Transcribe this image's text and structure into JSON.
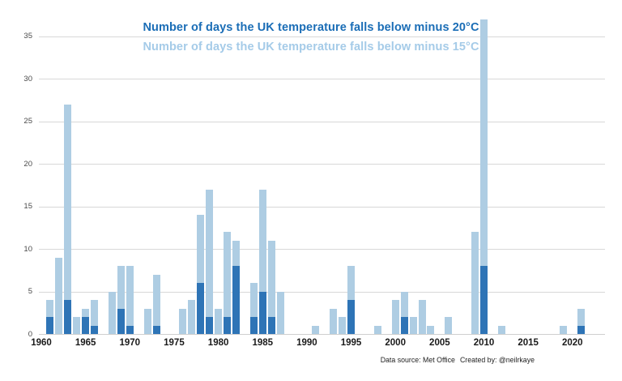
{
  "title": {
    "line1": "Number of days the UK temperature falls below minus 20°C",
    "line2": "Number of days the UK temperature falls below minus 15°C"
  },
  "footer": {
    "data_source": "Data source: Met Office",
    "created_by": "Created by: @neilrkaye"
  },
  "colors": {
    "bar_dark_blue": "#2e74b6",
    "bar_light_blue": "#aecde3",
    "title_dark_blue": "#1a6db6",
    "title_light_blue": "#a5cbe8",
    "gridline_gray": "#d8d8d8",
    "x_label_color": "#1a1a1a",
    "y_label_color": "#4a4a4a"
  },
  "chart_data": {
    "type": "bar",
    "title": "Number of days the UK temperature falls below minus 20°C",
    "subtitle": "Number of days the UK temperature falls below minus 15°C",
    "grid": "horizontal",
    "legend_position": "titles-act-as-legend",
    "ylim": [
      0,
      37.5
    ],
    "y_ticks": [
      0,
      5,
      10,
      15,
      20,
      25,
      30,
      35
    ],
    "x_tick_labels": [
      "1960",
      "1965",
      "1970",
      "1975",
      "1980",
      "1985",
      "1990",
      "1995",
      "2000",
      "2005",
      "2010",
      "2015",
      "2020"
    ],
    "years": [
      1960,
      1961,
      1962,
      1963,
      1964,
      1965,
      1966,
      1967,
      1968,
      1969,
      1970,
      1971,
      1972,
      1973,
      1974,
      1975,
      1976,
      1977,
      1978,
      1979,
      1980,
      1981,
      1982,
      1983,
      1984,
      1985,
      1986,
      1987,
      1988,
      1989,
      1990,
      1991,
      1992,
      1993,
      1994,
      1995,
      1996,
      1997,
      1998,
      1999,
      2000,
      2001,
      2002,
      2003,
      2004,
      2005,
      2006,
      2007,
      2008,
      2009,
      2010,
      2011,
      2012,
      2013,
      2014,
      2015,
      2016,
      2017,
      2018,
      2019,
      2020,
      2021,
      2022
    ],
    "series": [
      {
        "name": "days below minus 15C",
        "color": "#aecde3",
        "values": [
          0,
          4,
          9,
          27,
          2,
          3,
          4,
          0,
          5,
          8,
          8,
          0,
          3,
          7,
          0,
          0,
          3,
          4,
          14,
          17,
          3,
          12,
          11,
          0,
          6,
          17,
          11,
          5,
          0,
          0,
          0,
          1,
          0,
          3,
          2,
          8,
          0,
          0,
          1,
          0,
          4,
          5,
          2,
          4,
          1,
          0,
          2,
          0,
          0,
          12,
          37,
          0,
          1,
          0,
          0,
          0,
          0,
          0,
          0,
          1,
          0,
          3,
          0
        ]
      },
      {
        "name": "days below minus 20C",
        "color": "#2e74b6",
        "values": [
          0,
          2,
          0,
          4,
          0,
          2,
          1,
          0,
          0,
          3,
          1,
          0,
          0,
          1,
          0,
          0,
          0,
          0,
          6,
          2,
          0,
          2,
          8,
          0,
          2,
          5,
          2,
          0,
          0,
          0,
          0,
          0,
          0,
          0,
          0,
          4,
          0,
          0,
          0,
          0,
          0,
          2,
          0,
          0,
          0,
          0,
          0,
          0,
          0,
          0,
          8,
          0,
          0,
          0,
          0,
          0,
          0,
          0,
          0,
          0,
          0,
          1,
          0
        ]
      }
    ]
  }
}
